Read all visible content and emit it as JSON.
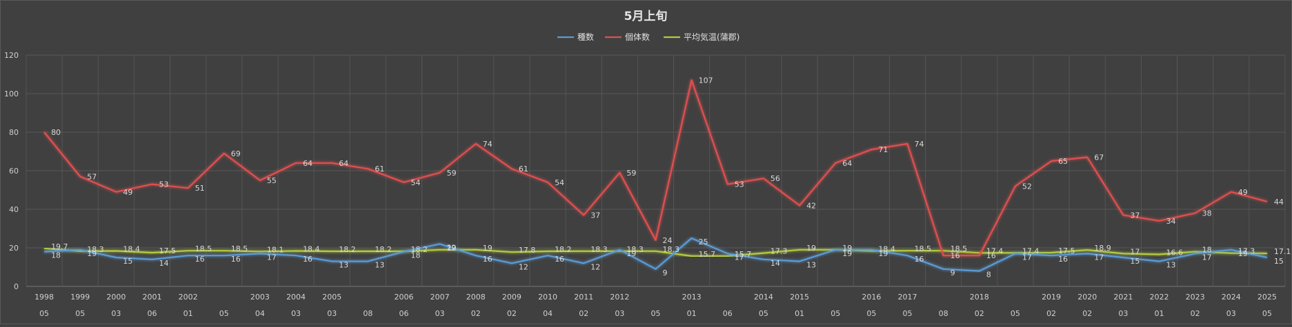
{
  "chart_data": {
    "type": "line",
    "title": "5月上旬",
    "legend_position": "top-center",
    "grid": true,
    "ylim": [
      0,
      120
    ],
    "y_ticks": [
      0,
      20,
      40,
      60,
      80,
      100,
      120
    ],
    "categories": [
      {
        "year": "1998",
        "sub": "05"
      },
      {
        "year": "1999",
        "sub": "05"
      },
      {
        "year": "2000",
        "sub": "03"
      },
      {
        "year": "2001",
        "sub": "06"
      },
      {
        "year": "2002",
        "sub": "01"
      },
      {
        "year": "",
        "sub": "05"
      },
      {
        "year": "2003",
        "sub": "04"
      },
      {
        "year": "2004",
        "sub": "03"
      },
      {
        "year": "2005",
        "sub": "03"
      },
      {
        "year": "",
        "sub": "08"
      },
      {
        "year": "2006",
        "sub": "06"
      },
      {
        "year": "2007",
        "sub": "03"
      },
      {
        "year": "2008",
        "sub": "02"
      },
      {
        "year": "2009",
        "sub": "02"
      },
      {
        "year": "2010",
        "sub": "04"
      },
      {
        "year": "2011",
        "sub": "02"
      },
      {
        "year": "2012",
        "sub": "03"
      },
      {
        "year": "",
        "sub": "05"
      },
      {
        "year": "2013",
        "sub": "01"
      },
      {
        "year": "",
        "sub": "06"
      },
      {
        "year": "2014",
        "sub": "05"
      },
      {
        "year": "2015",
        "sub": "01"
      },
      {
        "year": "",
        "sub": "05"
      },
      {
        "year": "2016",
        "sub": "05"
      },
      {
        "year": "2017",
        "sub": "05"
      },
      {
        "year": "",
        "sub": "08"
      },
      {
        "year": "2018",
        "sub": "02"
      },
      {
        "year": "",
        "sub": "05"
      },
      {
        "year": "2019",
        "sub": "02"
      },
      {
        "year": "2020",
        "sub": "02"
      },
      {
        "year": "2021",
        "sub": "03"
      },
      {
        "year": "2022",
        "sub": "01"
      },
      {
        "year": "2023",
        "sub": "02"
      },
      {
        "year": "2024",
        "sub": "03"
      },
      {
        "year": "2025",
        "sub": "05"
      }
    ],
    "series": [
      {
        "name": "種数",
        "color": "#5b9bd5",
        "values": [
          18,
          19,
          15,
          14,
          16,
          16,
          17,
          16,
          13,
          13,
          18,
          22,
          16,
          12,
          16,
          12,
          19,
          9,
          25,
          17,
          14,
          13,
          19,
          19,
          16,
          9,
          8,
          17,
          16,
          17,
          15,
          13,
          17,
          19,
          15
        ]
      },
      {
        "name": "個体数",
        "color": "#e05050",
        "values": [
          80,
          57,
          49,
          53,
          51,
          69,
          55,
          64,
          64,
          61,
          54,
          59,
          74,
          61,
          54,
          37,
          59,
          24,
          107,
          53,
          56,
          42,
          64,
          71,
          74,
          16,
          16,
          52,
          65,
          67,
          37,
          34,
          38,
          49,
          44
        ]
      },
      {
        "name": "平均気温(蒲郡)",
        "color": "#b5cc3c",
        "values": [
          19.7,
          18.3,
          18.4,
          17.5,
          18.5,
          18.5,
          18.1,
          18.4,
          18.2,
          18.2,
          18.2,
          19,
          19,
          17.8,
          18.2,
          18.3,
          18.3,
          18.3,
          15.7,
          15.7,
          17.3,
          19,
          19,
          18.4,
          18.5,
          18.5,
          17.4,
          17.4,
          17.5,
          18.9,
          17,
          16.6,
          18,
          17.3,
          17.1
        ]
      }
    ]
  }
}
